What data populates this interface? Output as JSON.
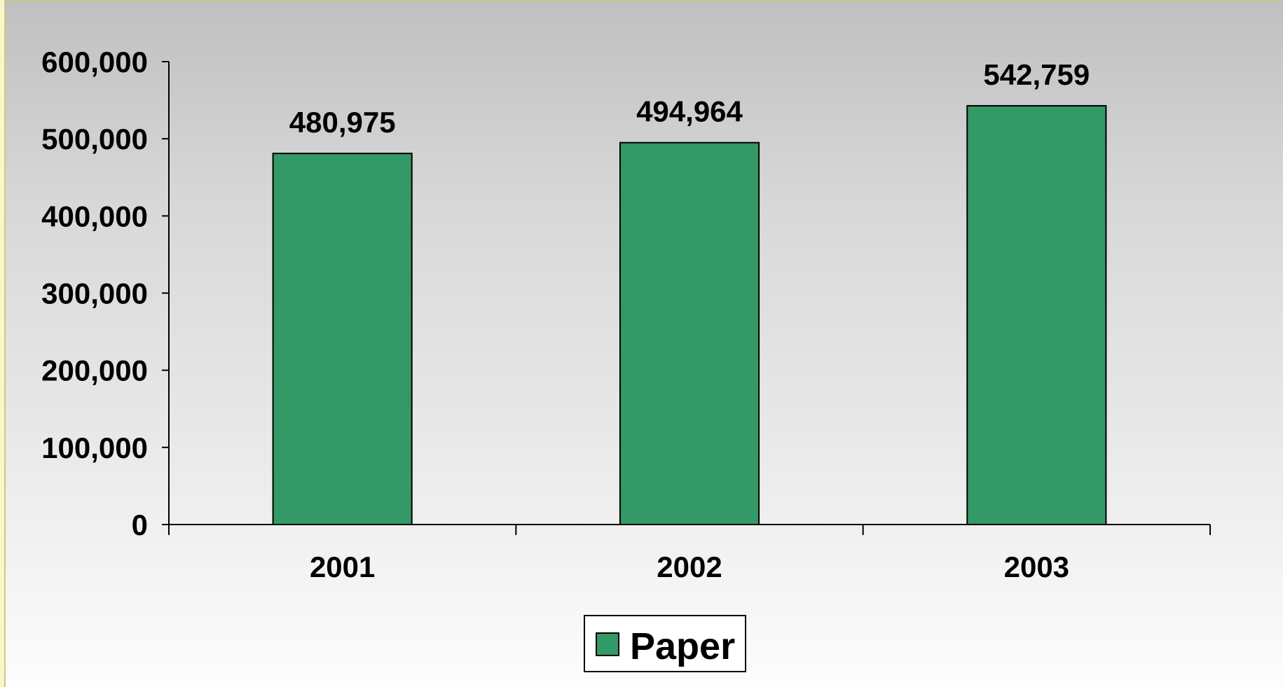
{
  "chart_data": {
    "type": "bar",
    "title": "",
    "categories": [
      "2001",
      "2002",
      "2003"
    ],
    "series": [
      {
        "name": "Paper",
        "values": [
          480975,
          494964,
          542759
        ],
        "color": "#339966"
      }
    ],
    "data_labels": [
      "480,975",
      "494,964",
      "542,759"
    ],
    "y_tick_labels": [
      "0",
      "100,000",
      "200,000",
      "300,000",
      "400,000",
      "500,000",
      "600,000"
    ],
    "ylim": [
      0,
      600000
    ],
    "y_tick_step": 100000,
    "xlabel": "",
    "ylabel": "",
    "grid": false,
    "legend_position": "bottom"
  }
}
